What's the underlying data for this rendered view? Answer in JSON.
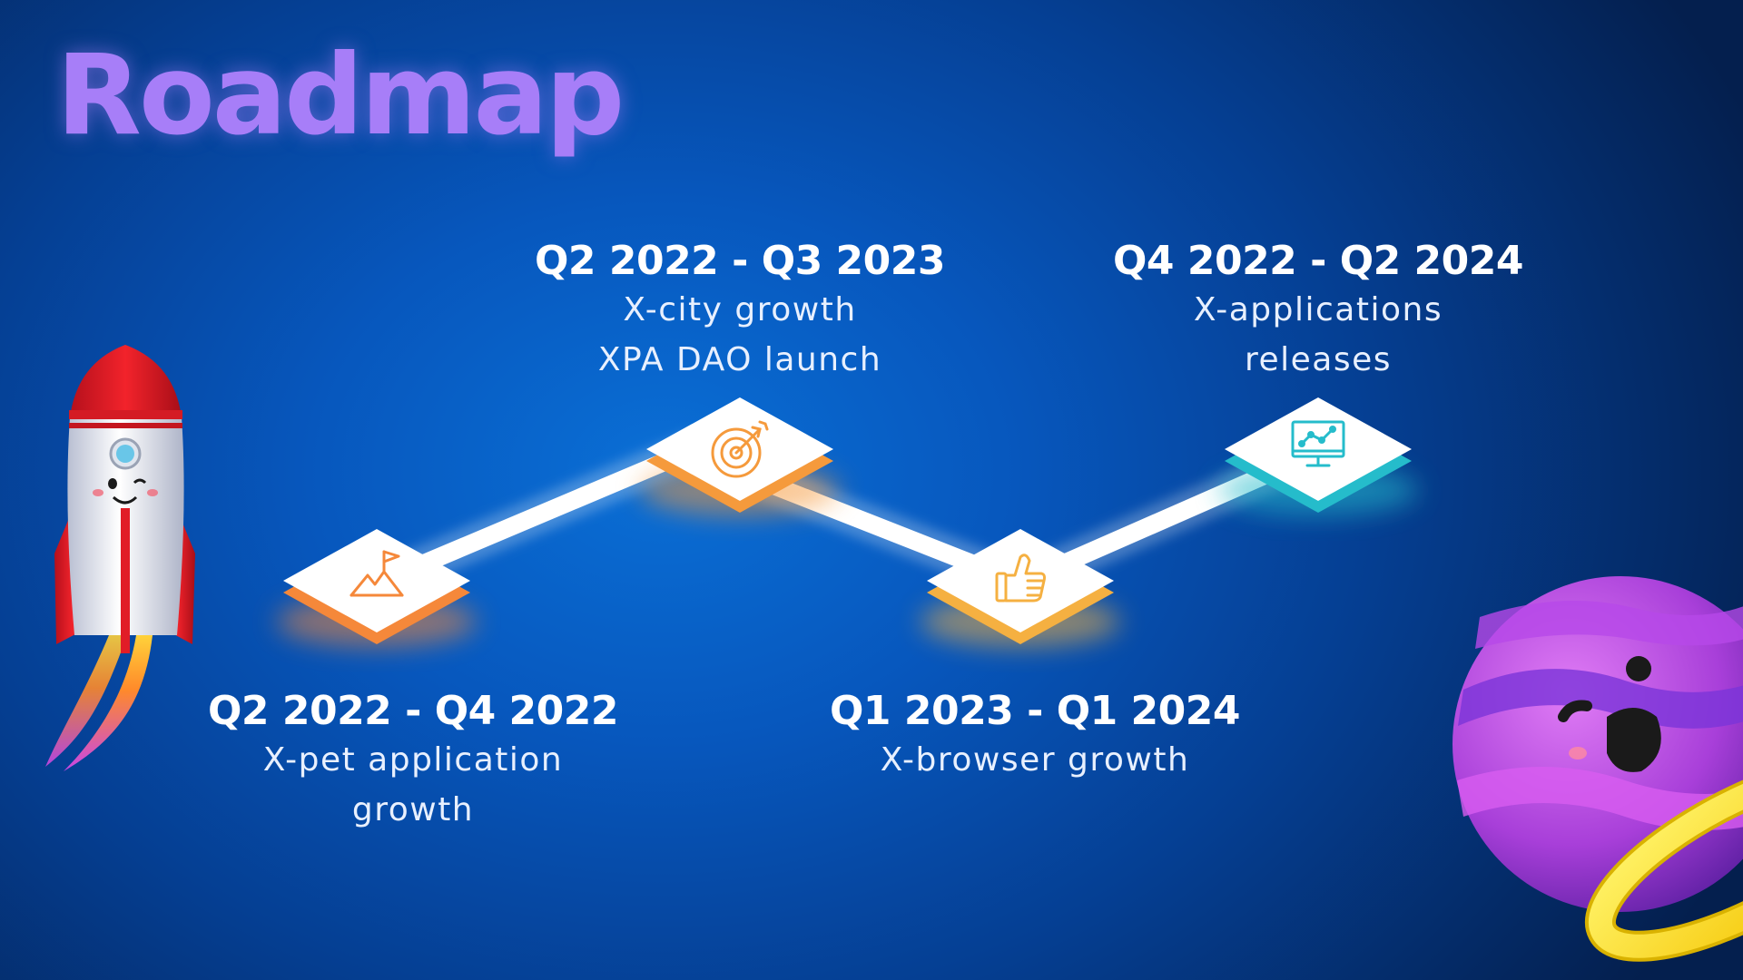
{
  "title": "Roadmap",
  "milestones": [
    {
      "period": "Q2 2022 - Q4 2022",
      "lines": [
        "X-pet application",
        "growth"
      ],
      "icon": "mountain-flag-icon",
      "color": "#f5883a"
    },
    {
      "period": "Q2 2022 - Q3 2023",
      "lines": [
        "X-city growth",
        "XPA DAO launch"
      ],
      "icon": "target-icon",
      "color": "#f59a3c"
    },
    {
      "period": "Q1 2023 - Q1 2024",
      "lines": [
        "X-browser growth"
      ],
      "icon": "thumbs-up-icon",
      "color": "#f5b041"
    },
    {
      "period": "Q4 2022 - Q2 2024",
      "lines": [
        "X-applications",
        "releases"
      ],
      "icon": "monitor-chart-icon",
      "color": "#25bccb"
    }
  ],
  "colors": {
    "title": "#a77ef8",
    "background_light": "#0a6fd6",
    "background_dark": "#041f4e",
    "path": "#ffffff"
  }
}
